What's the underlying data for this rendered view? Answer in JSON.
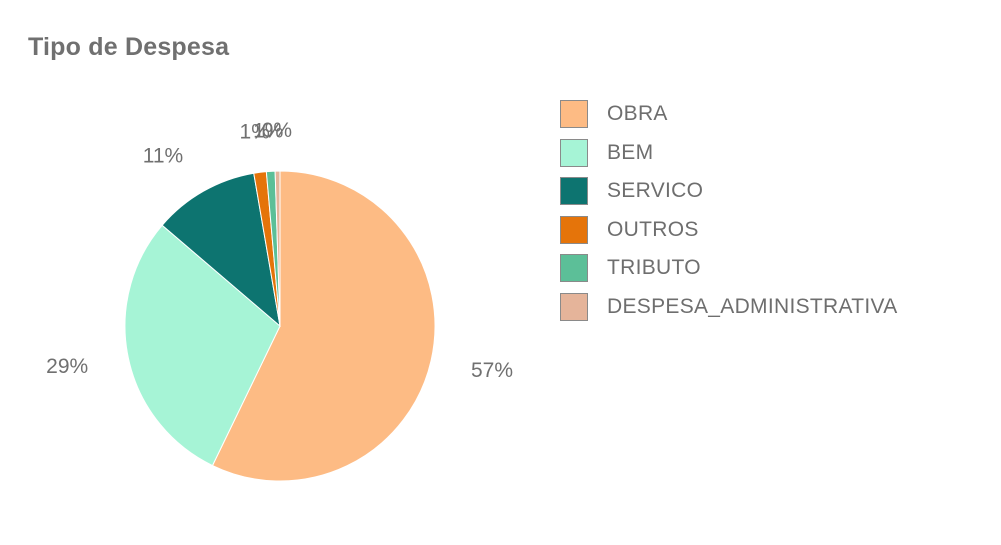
{
  "chart_data": {
    "type": "pie",
    "title": "Tipo de Despesa",
    "slices": [
      {
        "label": "OBRA",
        "percent": 57,
        "value_label": "57%",
        "color": "#fdbb84"
      },
      {
        "label": "BEM",
        "percent": 29,
        "value_label": "29%",
        "color": "#a6f4d6"
      },
      {
        "label": "SERVICO",
        "percent": 11,
        "value_label": "11%",
        "color": "#0d7470"
      },
      {
        "label": "OUTROS",
        "percent": 1.3,
        "value_label": "1%",
        "color": "#e5740a"
      },
      {
        "label": "TRIBUTO",
        "percent": 0.9,
        "value_label": "1%",
        "color": "#5cbf98"
      },
      {
        "label": "DESPESA_ADMINISTRATIVA",
        "percent": 0.5,
        "value_label": "0%",
        "color": "#e5b49a"
      }
    ],
    "legend_position": "right"
  }
}
